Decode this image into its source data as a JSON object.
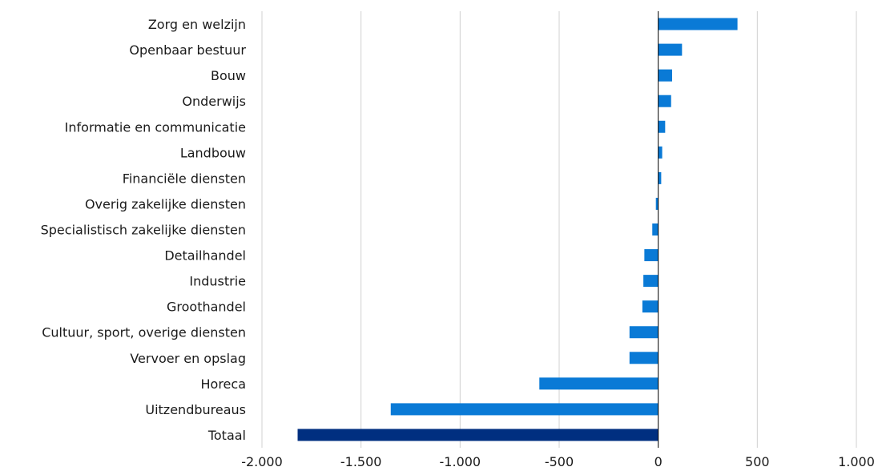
{
  "chart_data": {
    "type": "bar",
    "orientation": "horizontal",
    "title": "",
    "xlabel": "",
    "ylabel": "",
    "xlim": [
      -2000,
      1000
    ],
    "x_ticks": [
      -2000,
      -1500,
      -1000,
      -500,
      0,
      500,
      1000
    ],
    "x_tick_labels": [
      "-2.000",
      "-1.500",
      "-1.000",
      "-500",
      "0",
      "500",
      "1.000"
    ],
    "grid": "vertical",
    "legend": "none",
    "colors": {
      "bar": "#0a7ad6",
      "total_bar": "#002f80",
      "grid": "#d0d0d0",
      "zero_axis": "#000000"
    },
    "categories": [
      "Zorg en welzijn",
      "Openbaar bestuur",
      "Bouw",
      "Onderwijs",
      "Informatie en communicatie",
      "Landbouw",
      "Financiële diensten",
      "Overig zakelijke diensten",
      "Specialistisch zakelijke diensten",
      "Detailhandel",
      "Industrie",
      "Groothandel",
      "Cultuur, sport, overige diensten",
      "Vervoer en opslag",
      "Horeca",
      "Uitzendbureaus",
      "Totaal"
    ],
    "values": [
      400,
      120,
      70,
      65,
      35,
      20,
      15,
      -12,
      -30,
      -70,
      -75,
      -80,
      -145,
      -145,
      -600,
      -1350,
      -1820
    ],
    "highlight_category": "Totaal"
  }
}
